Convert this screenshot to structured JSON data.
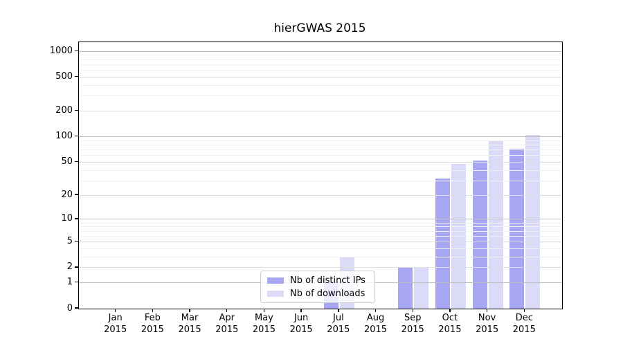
{
  "title": "hierGWAS 2015",
  "colors": {
    "ips_bar": "#a7a7f3",
    "downloads_bar": "#dbdbf8"
  },
  "legend": {
    "items": [
      {
        "label": "Nb of distinct IPs",
        "series": "ips"
      },
      {
        "label": "Nb of downloads",
        "series": "downloads"
      }
    ],
    "position": "lower center"
  },
  "chart_data": {
    "type": "bar",
    "title": "hierGWAS 2015",
    "categories": [
      "Jan 2015",
      "Feb 2015",
      "Mar 2015",
      "Apr 2015",
      "May 2015",
      "Jun 2015",
      "Jul 2015",
      "Aug 2015",
      "Sep 2015",
      "Oct 2015",
      "Nov 2015",
      "Dec 2015"
    ],
    "series": [
      {
        "name": "Nb of distinct IPs",
        "color": "#a7a7f3",
        "values": [
          0,
          0,
          0,
          0,
          0,
          0,
          1,
          0,
          2,
          32,
          52,
          72
        ]
      },
      {
        "name": "Nb of downloads",
        "color": "#dbdbf8",
        "values": [
          0,
          0,
          0,
          0,
          0,
          0,
          3,
          0,
          2,
          48,
          88,
          106
        ]
      }
    ],
    "xlabel": "",
    "ylabel": "",
    "yscale": "log10(1+x)",
    "yticks": [
      0,
      1,
      2,
      5,
      10,
      20,
      50,
      100,
      200,
      500,
      1000
    ],
    "ytick_mid": [
      2,
      5,
      20,
      50,
      200,
      500
    ],
    "ytick_major": [
      1,
      10,
      100,
      1000
    ],
    "yticks_minor": [
      3,
      4,
      6,
      7,
      8,
      9,
      30,
      40,
      60,
      70,
      80,
      90,
      300,
      400,
      600,
      700,
      800,
      900
    ],
    "ylim": [
      0,
      1280
    ],
    "grid": "on"
  }
}
